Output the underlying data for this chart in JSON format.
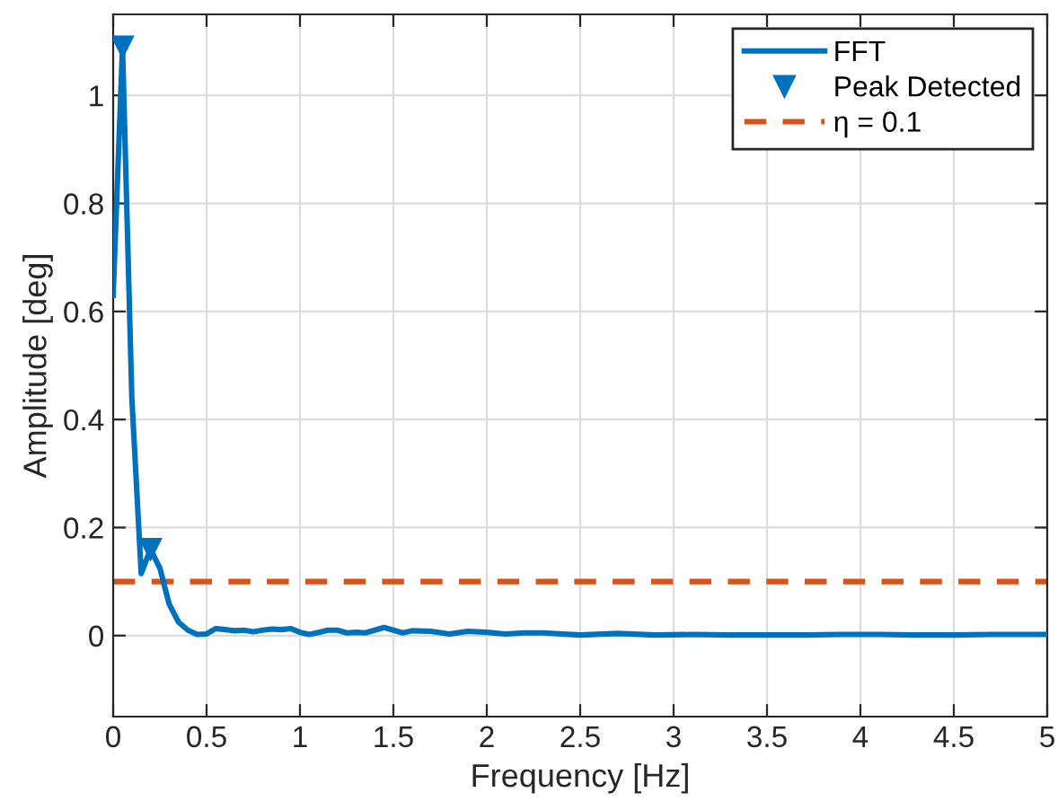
{
  "chart_data": {
    "type": "line",
    "xlabel": "Frequency [Hz]",
    "ylabel": "Amplitude [deg]",
    "xlim": [
      0,
      5
    ],
    "ylim": [
      -0.15,
      1.15
    ],
    "xticks": [
      0,
      0.5,
      1,
      1.5,
      2,
      2.5,
      3,
      3.5,
      4,
      4.5,
      5
    ],
    "yticks": [
      0,
      0.2,
      0.4,
      0.6,
      0.8,
      1
    ],
    "grid": true,
    "legend": "top right",
    "series": [
      {
        "name": "FFT",
        "color": "#0072bd",
        "line_style": "solid",
        "marker": "none",
        "x": [
          0,
          0.05,
          0.1,
          0.15,
          0.2,
          0.25,
          0.3,
          0.35,
          0.4,
          0.45,
          0.5,
          0.55,
          0.6,
          0.65,
          0.7,
          0.75,
          0.8,
          0.85,
          0.9,
          0.95,
          1.0,
          1.05,
          1.1,
          1.15,
          1.2,
          1.25,
          1.3,
          1.35,
          1.4,
          1.45,
          1.5,
          1.55,
          1.6,
          1.7,
          1.8,
          1.9,
          2.0,
          2.1,
          2.2,
          2.3,
          2.5,
          2.7,
          2.9,
          3.1,
          3.3,
          3.5,
          3.7,
          3.9,
          4.1,
          4.3,
          4.5,
          4.7,
          4.9,
          5.0
        ],
        "values": [
          0.63,
          1.09,
          0.44,
          0.115,
          0.16,
          0.125,
          0.058,
          0.025,
          0.01,
          0.002,
          0.003,
          0.013,
          0.011,
          0.009,
          0.01,
          0.007,
          0.01,
          0.012,
          0.011,
          0.013,
          0.006,
          0.002,
          0.006,
          0.01,
          0.01,
          0.005,
          0.006,
          0.005,
          0.01,
          0.015,
          0.01,
          0.005,
          0.009,
          0.008,
          0.003,
          0.008,
          0.006,
          0.003,
          0.005,
          0.005,
          0.001,
          0.004,
          0.001,
          0.002,
          0.001,
          0.001,
          0.001,
          0.002,
          0.002,
          0.001,
          0.001,
          0.002,
          0.002,
          0.002
        ]
      },
      {
        "name": "Peak Detected",
        "type": "scatter",
        "color": "#0072bd",
        "marker": "triangle",
        "x": [
          0.05,
          0.2
        ],
        "values": [
          1.09,
          0.16
        ]
      }
    ],
    "ref_lines": [
      {
        "axis": "y",
        "value": 0.1,
        "label": "η = 0.1",
        "color": "#d95319",
        "line_style": "dashed"
      }
    ]
  }
}
